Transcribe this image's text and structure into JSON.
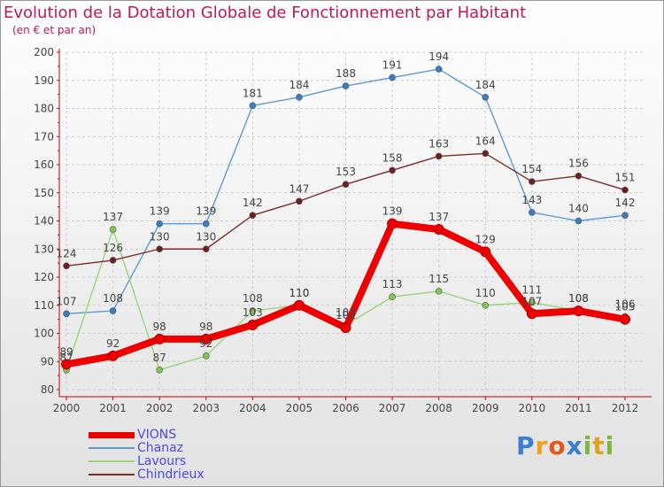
{
  "header": {
    "title": "Evolution de la Dotation Globale de Fonctionnement par Habitant",
    "subtitle": "(en € et par an)"
  },
  "logo": {
    "text": "Proxiti",
    "letters": [
      "P",
      "r",
      "o",
      "x",
      "i",
      "t",
      "i"
    ]
  },
  "colors": {
    "title": "#c2185b",
    "axis": "#cc0000",
    "grid": "#cccccc",
    "label": "#444444"
  },
  "chart_data": {
    "type": "line",
    "title": "Evolution de la Dotation Globale de Fonctionnement par Habitant",
    "subtitle": "(en € et par an)",
    "xlabel": "",
    "ylabel": "",
    "ylim": [
      80,
      200
    ],
    "yticks": [
      80,
      90,
      100,
      110,
      120,
      130,
      140,
      150,
      160,
      170,
      180,
      190,
      200
    ],
    "grid": true,
    "legend": "bottom-left",
    "x": [
      "2000",
      "2001",
      "2002",
      "2003",
      "2004",
      "2005",
      "2006",
      "2007",
      "2008",
      "2009",
      "2010",
      "2011",
      "2012"
    ],
    "series": [
      {
        "name": "VIONS",
        "color": "#ee0000",
        "marker": "#ee0000",
        "thick": true,
        "values": [
          89,
          92,
          98,
          98,
          103,
          110,
          102,
          139,
          137,
          129,
          107,
          108,
          105
        ]
      },
      {
        "name": "Chanaz",
        "color": "#5b9bd5",
        "marker": "#3a7dc4",
        "thick": false,
        "values": [
          107,
          108,
          139,
          139,
          181,
          184,
          188,
          191,
          194,
          184,
          143,
          140,
          142
        ]
      },
      {
        "name": "Lavours",
        "color": "#9bd47a",
        "marker": "#7ec850",
        "thick": false,
        "values": [
          87,
          137,
          87,
          92,
          108,
          110,
          103,
          113,
          115,
          110,
          111,
          108,
          106
        ]
      },
      {
        "name": "Chindrieux",
        "color": "#7b2c2c",
        "marker": "#6b1f1f",
        "thick": false,
        "values": [
          124,
          126,
          130,
          130,
          142,
          147,
          153,
          158,
          163,
          164,
          154,
          156,
          151
        ]
      }
    ]
  }
}
